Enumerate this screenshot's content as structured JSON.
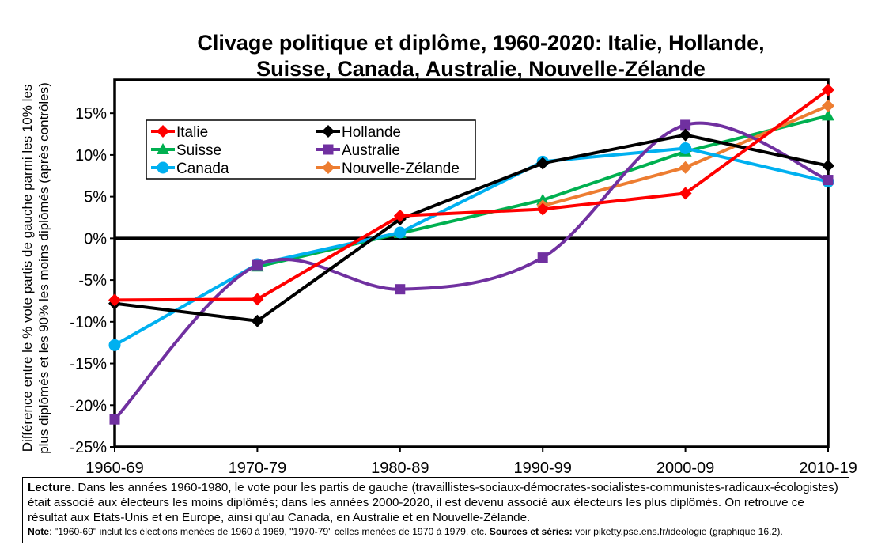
{
  "chart_data": {
    "type": "line",
    "title_line1": "Clivage politique et diplôme, 1960-2020: Italie, Hollande,",
    "title_line2": "Suisse, Canada, Australie, Nouvelle-Zélande",
    "ylabel_line1": "Différence entre le % vote partis de gauche parmi les 10% les",
    "ylabel_line2": "plus diplômés et les 90% les moins diplômés (après contrôles)",
    "categories": [
      "1960-69",
      "1970-79",
      "1980-89",
      "1990-99",
      "2000-09",
      "2010-19"
    ],
    "y_ticks": [
      "15%",
      "10%",
      "5%",
      "0%",
      "-5%",
      "-10%",
      "-15%",
      "-20%",
      "-25%"
    ],
    "ylim": [
      -25,
      19
    ],
    "legend_placement": "top-left",
    "series": [
      {
        "name": "Italie",
        "color": "#ff0000",
        "marker": "diamond",
        "smooth": false,
        "values": [
          -7.4,
          -7.3,
          2.7,
          3.5,
          5.4,
          17.8
        ]
      },
      {
        "name": "Hollande",
        "color": "#000000",
        "marker": "diamond",
        "smooth": false,
        "values": [
          -7.8,
          -9.9,
          2.3,
          9.0,
          12.4,
          8.7
        ]
      },
      {
        "name": "Suisse",
        "color": "#00b050",
        "marker": "triangle",
        "smooth": false,
        "values": [
          null,
          -3.4,
          0.6,
          4.6,
          10.4,
          14.7
        ]
      },
      {
        "name": "Australie",
        "color": "#7030a0",
        "marker": "square",
        "smooth": true,
        "values": [
          -21.7,
          -3.2,
          -6.1,
          -2.3,
          13.6,
          7.0
        ]
      },
      {
        "name": "Canada",
        "color": "#00b0f0",
        "marker": "circle",
        "smooth": false,
        "values": [
          -12.8,
          -3.1,
          0.7,
          9.2,
          10.8,
          6.8
        ]
      },
      {
        "name": "Nouvelle-Zélande",
        "color": "#ed7d31",
        "marker": "diamond",
        "smooth": false,
        "values": [
          null,
          null,
          null,
          3.9,
          8.5,
          15.9
        ]
      }
    ]
  },
  "notes": {
    "lecture_label": "Lecture",
    "lecture_text": ". Dans les années 1960-1980, le vote pour les partis de gauche (travaillistes-sociaux-démocrates-socialistes-communistes-radicaux-écologistes) était associé aux électeurs les moins diplômés; dans les années 2000-2020, il est devenu associé aux électeurs les plus diplômés. On retrouve ce résultat aux Etats-Unis et en Europe, ainsi qu'au Canada, en Australie et en Nouvelle-Zélande.",
    "note_label": "Note",
    "note_text": ": \"1960-69\" inclut les élections menées de 1960 à 1969, \"1970-79\" celles menées de 1970 à 1979, etc.  ",
    "sources_label": "Sources et séries:",
    "sources_text": " voir piketty.pse.ens.fr/ideologie (graphique 16.2)."
  }
}
